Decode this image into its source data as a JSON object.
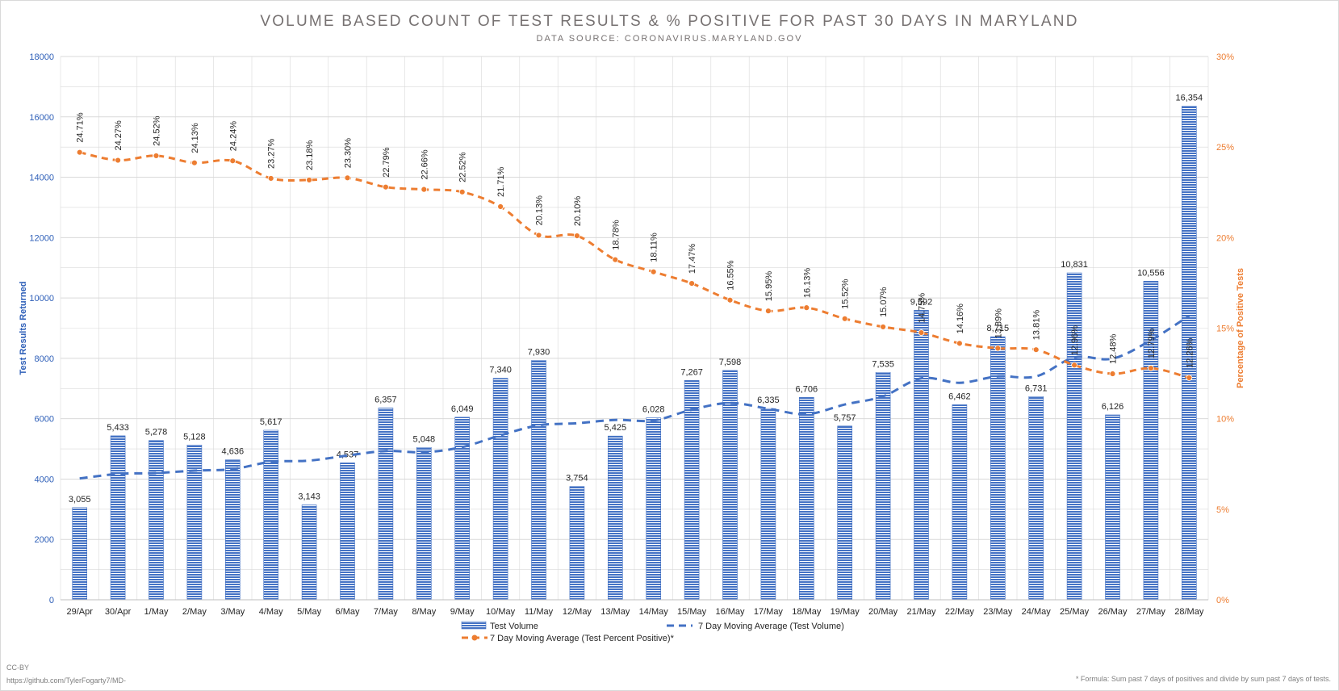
{
  "title": "VOLUME BASED COUNT OF TEST RESULTS & % POSITIVE FOR PAST 30 DAYS IN MARYLAND",
  "subtitle": "DATA SOURCE: CORONAVIRUS.MARYLAND.GOV",
  "license": "CC-BY",
  "source_url": "https://github.com/TylerFogarty7/MD-",
  "footnote": "* Formula: Sum past 7 days of positives and divide by sum past 7 days of tests.",
  "colors": {
    "bar": "#4472c4",
    "volume_avg": "#4472c4",
    "percent_avg": "#ed7d31",
    "left_axis": "#2e5fb8",
    "right_axis": "#ed7d31",
    "grid": "#d9d9d9",
    "text": "#262626"
  },
  "chart_data": {
    "type": "bar",
    "title": "VOLUME BASED COUNT OF TEST RESULTS & % POSITIVE FOR PAST 30 DAYS IN MARYLAND",
    "subtitle": "DATA SOURCE: CORONAVIRUS.MARYLAND.GOV",
    "categories": [
      "29/Apr",
      "30/Apr",
      "1/May",
      "2/May",
      "3/May",
      "4/May",
      "5/May",
      "6/May",
      "7/May",
      "8/May",
      "9/May",
      "10/May",
      "11/May",
      "12/May",
      "13/May",
      "14/May",
      "15/May",
      "16/May",
      "17/May",
      "18/May",
      "19/May",
      "20/May",
      "21/May",
      "22/May",
      "23/May",
      "24/May",
      "25/May",
      "26/May",
      "27/May",
      "28/May"
    ],
    "ylabel": "Test Results Returned",
    "y2label": "Percentage of Positive Tests",
    "ylim": [
      0,
      18000
    ],
    "y_ticks": [
      "0",
      "2000",
      "4000",
      "6000",
      "8000",
      "10000",
      "12000",
      "14000",
      "16000",
      "18000"
    ],
    "y2lim": [
      0,
      30
    ],
    "y2_ticks": [
      "0%",
      "5%",
      "10%",
      "15%",
      "20%",
      "25%",
      "30%"
    ],
    "grid": true,
    "legend_position": "bottom",
    "series": [
      {
        "name": "Test Volume",
        "kind": "bar",
        "axis": "left",
        "values": [
          3055,
          5433,
          5278,
          5128,
          4636,
          5617,
          3143,
          4537,
          6357,
          5048,
          6049,
          7340,
          7930,
          3754,
          5425,
          6028,
          7267,
          7598,
          6335,
          6706,
          5757,
          7535,
          9592,
          6462,
          8715,
          6731,
          10831,
          6126,
          10556,
          16354
        ],
        "labels": [
          "3,055",
          "5,433",
          "5,278",
          "5,128",
          "4,636",
          "5,617",
          "3,143",
          "4,537",
          "6,357",
          "5,048",
          "6,049",
          "7,340",
          "7,930",
          "3,754",
          "5,425",
          "6,028",
          "7,267",
          "7,598",
          "6,335",
          "6,706",
          "5,757",
          "7,535",
          "9,592",
          "6,462",
          "8,715",
          "6,731",
          "10,831",
          "6,126",
          "10,556",
          "16,354"
        ]
      },
      {
        "name": "7 Day Moving Average (Test Volume)",
        "kind": "dashed-line",
        "axis": "left",
        "values": [
          4020,
          4170,
          4200,
          4280,
          4330,
          4570,
          4610,
          4780,
          4930,
          4890,
          5060,
          5450,
          5780,
          5850,
          5960,
          5940,
          6300,
          6520,
          6330,
          6150,
          6470,
          6740,
          7340,
          7190,
          7400,
          7400,
          8030,
          7990,
          8600,
          9410
        ]
      },
      {
        "name": "7 Day Moving Average (Test Percent Positive)*",
        "kind": "dashed-line-markers",
        "axis": "right",
        "values": [
          24.71,
          24.27,
          24.52,
          24.13,
          24.24,
          23.27,
          23.18,
          23.3,
          22.79,
          22.66,
          22.52,
          21.71,
          20.13,
          20.1,
          18.78,
          18.11,
          17.47,
          16.55,
          15.95,
          16.13,
          15.52,
          15.07,
          14.75,
          14.16,
          13.89,
          13.81,
          12.96,
          12.48,
          12.79,
          12.26
        ],
        "labels": [
          "24.71%",
          "24.27%",
          "24.52%",
          "24.13%",
          "24.24%",
          "23.27%",
          "23.18%",
          "23.30%",
          "22.79%",
          "22.66%",
          "22.52%",
          "21.71%",
          "20.13%",
          "20.10%",
          "18.78%",
          "18.11%",
          "17.47%",
          "16.55%",
          "15.95%",
          "16.13%",
          "15.52%",
          "15.07%",
          "14.75%",
          "14.16%",
          "13.89%",
          "13.81%",
          "12.96%",
          "12.48%",
          "12.79%",
          "12.26%"
        ]
      }
    ]
  }
}
